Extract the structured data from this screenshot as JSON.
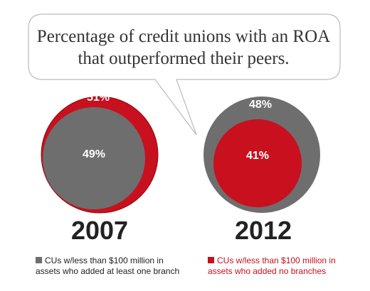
{
  "title": "Percentage of credit unions with an ROA that outperformed their peers.",
  "colors": {
    "added_branch": "#6e6e6e",
    "no_branches": "#c8101e",
    "bubble_border": "#bbbbbb",
    "text_dark": "#222222"
  },
  "legend": [
    {
      "label_line1": "CUs w/less than $100 million in",
      "label_line2": "assets who added at least one branch",
      "color": "#6e6e6e"
    },
    {
      "label_line1": "CUs w/less than $100 million in",
      "label_line2": "assets who added no branches",
      "color": "#c8101e"
    }
  ],
  "chart_data": {
    "type": "pie",
    "title": "Percentage of credit unions with an ROA that outperformed their peers.",
    "categories": [
      "2007",
      "2012"
    ],
    "series": [
      {
        "name": "CUs w/less than $100 million in assets who added at least one branch",
        "values": [
          49,
          48
        ],
        "value_labels": [
          "49%",
          "48%"
        ]
      },
      {
        "name": "CUs w/less than $100 million in assets who added no branches",
        "values": [
          51,
          41
        ],
        "value_labels": [
          "51%",
          "41%"
        ]
      }
    ],
    "legend_position": "bottom"
  }
}
